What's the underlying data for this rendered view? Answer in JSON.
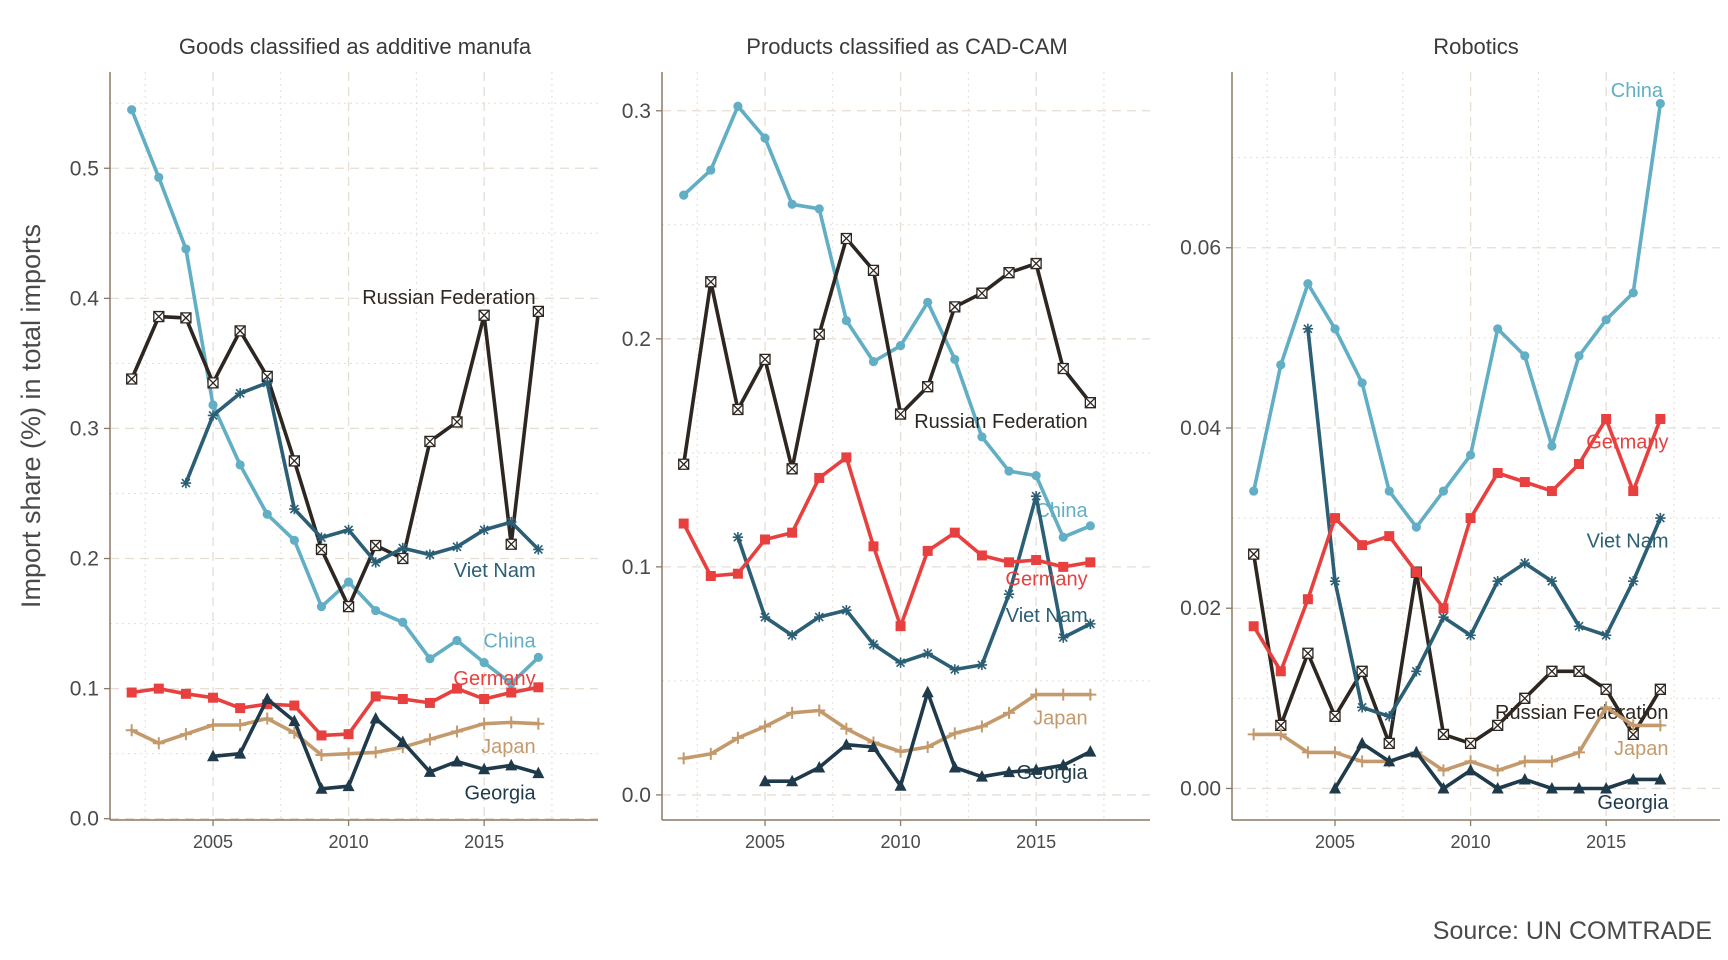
{
  "figure": {
    "ylabel": "Import share (%) in total imports",
    "source": "Source: UN COMTRADE"
  },
  "series_styles": {
    "China": {
      "color": "#62aec5",
      "marker": "circle"
    },
    "Russian Federation": {
      "color": "#2e2620",
      "marker": "boxx"
    },
    "Viet Nam": {
      "color": "#2b5f75",
      "marker": "star"
    },
    "Germany": {
      "color": "#e8403f",
      "marker": "square"
    },
    "Japan": {
      "color": "#c49a6c",
      "marker": "plus"
    },
    "Georgia": {
      "color": "#1f3a4a",
      "marker": "triangle"
    }
  },
  "chart_data": [
    {
      "type": "line",
      "title": "Goods classified as additive manufa",
      "xlim": [
        2001.2,
        2019.2
      ],
      "ylim": [
        -0.001,
        0.574
      ],
      "xticks": [
        2005,
        2010,
        2015
      ],
      "xticks_minor": [
        2002.5,
        2007.5,
        2012.5,
        2017.5
      ],
      "yticks": [
        0.0,
        0.1,
        0.2,
        0.3,
        0.4,
        0.5
      ],
      "ytick_labels": [
        "0.0",
        "0.1",
        "0.2",
        "0.3",
        "0.4",
        "0.5"
      ],
      "yticks_minor": [
        0.05,
        0.15,
        0.25,
        0.35,
        0.45,
        0.55
      ],
      "grid": true,
      "series": [
        {
          "name": "China",
          "x": [
            2002,
            2003,
            2004,
            2005,
            2006,
            2007,
            2008,
            2009,
            2010,
            2011,
            2012,
            2013,
            2014,
            2015,
            2016,
            2017
          ],
          "values": [
            0.545,
            0.493,
            0.438,
            0.318,
            0.272,
            0.234,
            0.214,
            0.163,
            0.182,
            0.16,
            0.151,
            0.123,
            0.137,
            0.12,
            0.104,
            0.124
          ],
          "label": "China",
          "label_pos": [
            2016.9,
            0.137
          ]
        },
        {
          "name": "Russian Federation",
          "x": [
            2002,
            2003,
            2004,
            2005,
            2006,
            2007,
            2008,
            2009,
            2010,
            2011,
            2012,
            2013,
            2014,
            2015,
            2016,
            2017
          ],
          "values": [
            0.338,
            0.386,
            0.385,
            0.335,
            0.375,
            0.34,
            0.275,
            0.207,
            0.163,
            0.21,
            0.2,
            0.29,
            0.305,
            0.387,
            0.211,
            0.39
          ],
          "label": "Russian Federation",
          "label_pos": [
            2016.9,
            0.401
          ]
        },
        {
          "name": "Viet Nam",
          "x": [
            2004,
            2005,
            2006,
            2007,
            2008,
            2009,
            2010,
            2011,
            2012,
            2013,
            2014,
            2015,
            2016,
            2017
          ],
          "values": [
            0.258,
            0.31,
            0.327,
            0.335,
            0.238,
            0.216,
            0.222,
            0.197,
            0.208,
            0.203,
            0.209,
            0.222,
            0.228,
            0.207
          ],
          "label": "Viet Nam",
          "label_pos": [
            2016.9,
            0.191
          ]
        },
        {
          "name": "Germany",
          "x": [
            2002,
            2003,
            2004,
            2005,
            2006,
            2007,
            2008,
            2009,
            2010,
            2011,
            2012,
            2013,
            2014,
            2015,
            2016,
            2017
          ],
          "values": [
            0.097,
            0.1,
            0.096,
            0.093,
            0.085,
            0.088,
            0.087,
            0.064,
            0.065,
            0.094,
            0.092,
            0.089,
            0.1,
            0.092,
            0.097,
            0.101
          ],
          "label": "Germany",
          "label_pos": [
            2016.9,
            0.108
          ]
        },
        {
          "name": "Japan",
          "x": [
            2002,
            2003,
            2004,
            2005,
            2006,
            2007,
            2008,
            2009,
            2010,
            2011,
            2012,
            2013,
            2014,
            2015,
            2016,
            2017
          ],
          "values": [
            0.068,
            0.058,
            0.065,
            0.072,
            0.072,
            0.077,
            0.066,
            0.049,
            0.05,
            0.051,
            0.055,
            0.061,
            0.067,
            0.073,
            0.074,
            0.073
          ],
          "label": "Japan",
          "label_pos": [
            2016.9,
            0.056
          ]
        },
        {
          "name": "Georgia",
          "x": [
            2005,
            2006,
            2007,
            2008,
            2009,
            2010,
            2011,
            2012,
            2013,
            2014,
            2015,
            2016,
            2017
          ],
          "values": [
            0.048,
            0.05,
            0.092,
            0.075,
            0.023,
            0.025,
            0.077,
            0.059,
            0.036,
            0.044,
            0.038,
            0.041,
            0.035
          ],
          "label": "Georgia",
          "label_pos": [
            2016.9,
            0.02
          ]
        }
      ]
    },
    {
      "type": "line",
      "title": "Products classified as CAD-CAM",
      "xlim": [
        2001.2,
        2019.2
      ],
      "ylim": [
        -0.011,
        0.317
      ],
      "xticks": [
        2005,
        2010,
        2015
      ],
      "xticks_minor": [
        2002.5,
        2007.5,
        2012.5,
        2017.5
      ],
      "yticks": [
        0.0,
        0.1,
        0.2,
        0.3
      ],
      "ytick_labels": [
        "0.0",
        "0.1",
        "0.2",
        "0.3"
      ],
      "yticks_minor": [
        0.05,
        0.15,
        0.25
      ],
      "grid": true,
      "series": [
        {
          "name": "China",
          "x": [
            2002,
            2003,
            2004,
            2005,
            2006,
            2007,
            2008,
            2009,
            2010,
            2011,
            2012,
            2013,
            2014,
            2015,
            2016,
            2017
          ],
          "values": [
            0.263,
            0.274,
            0.302,
            0.288,
            0.259,
            0.257,
            0.208,
            0.19,
            0.197,
            0.216,
            0.191,
            0.157,
            0.142,
            0.14,
            0.113,
            0.118
          ],
          "label": "China",
          "label_pos": [
            2016.9,
            0.125
          ]
        },
        {
          "name": "Russian Federation",
          "x": [
            2002,
            2003,
            2004,
            2005,
            2006,
            2007,
            2008,
            2009,
            2010,
            2011,
            2012,
            2013,
            2014,
            2015,
            2016,
            2017
          ],
          "values": [
            0.145,
            0.225,
            0.169,
            0.191,
            0.143,
            0.202,
            0.244,
            0.23,
            0.167,
            0.179,
            0.214,
            0.22,
            0.229,
            0.233,
            0.187,
            0.172
          ],
          "label": "Russian Federation",
          "label_pos": [
            2016.9,
            0.164
          ]
        },
        {
          "name": "Viet Nam",
          "x": [
            2004,
            2005,
            2006,
            2007,
            2008,
            2009,
            2010,
            2011,
            2012,
            2013,
            2014,
            2015,
            2016,
            2017
          ],
          "values": [
            0.113,
            0.078,
            0.07,
            0.078,
            0.081,
            0.066,
            0.058,
            0.062,
            0.055,
            0.057,
            0.088,
            0.131,
            0.069,
            0.075
          ],
          "label": "Viet Nam",
          "label_pos": [
            2016.9,
            0.079
          ]
        },
        {
          "name": "Germany",
          "x": [
            2002,
            2003,
            2004,
            2005,
            2006,
            2007,
            2008,
            2009,
            2010,
            2011,
            2012,
            2013,
            2014,
            2015,
            2016,
            2017
          ],
          "values": [
            0.119,
            0.096,
            0.097,
            0.112,
            0.115,
            0.139,
            0.148,
            0.109,
            0.074,
            0.107,
            0.115,
            0.105,
            0.102,
            0.103,
            0.1,
            0.102
          ],
          "label": "Germany",
          "label_pos": [
            2016.9,
            0.095
          ]
        },
        {
          "name": "Japan",
          "x": [
            2002,
            2003,
            2004,
            2005,
            2006,
            2007,
            2008,
            2009,
            2010,
            2011,
            2012,
            2013,
            2014,
            2015,
            2016,
            2017
          ],
          "values": [
            0.016,
            0.018,
            0.025,
            0.03,
            0.036,
            0.037,
            0.029,
            0.023,
            0.019,
            0.021,
            0.027,
            0.03,
            0.036,
            0.044,
            0.044,
            0.044
          ],
          "label": "Japan",
          "label_pos": [
            2016.9,
            0.034
          ]
        },
        {
          "name": "Georgia",
          "x": [
            2005,
            2006,
            2007,
            2008,
            2009,
            2010,
            2011,
            2012,
            2013,
            2014,
            2015,
            2016,
            2017
          ],
          "values": [
            0.006,
            0.006,
            0.012,
            0.022,
            0.021,
            0.004,
            0.045,
            0.012,
            0.008,
            0.01,
            0.011,
            0.013,
            0.019
          ],
          "label": "Georgia",
          "label_pos": [
            2016.9,
            0.01
          ]
        }
      ]
    },
    {
      "type": "line",
      "title": "Robotics",
      "xlim": [
        2001.2,
        2019.2
      ],
      "ylim": [
        -0.0035,
        0.0795
      ],
      "xticks": [
        2005,
        2010,
        2015
      ],
      "xticks_minor": [
        2002.5,
        2007.5,
        2012.5,
        2017.5
      ],
      "yticks": [
        0.0,
        0.02,
        0.04,
        0.06
      ],
      "ytick_labels": [
        "0.00",
        "0.02",
        "0.04",
        "0.06"
      ],
      "yticks_minor": [
        0.01,
        0.03,
        0.05,
        0.07
      ],
      "grid": true,
      "series": [
        {
          "name": "China",
          "x": [
            2002,
            2003,
            2004,
            2005,
            2006,
            2007,
            2008,
            2009,
            2010,
            2011,
            2012,
            2013,
            2014,
            2015,
            2016,
            2017
          ],
          "values": [
            0.033,
            0.047,
            0.056,
            0.051,
            0.045,
            0.033,
            0.029,
            0.033,
            0.037,
            0.051,
            0.048,
            0.038,
            0.048,
            0.052,
            0.055,
            0.076
          ],
          "label": "China",
          "label_pos": [
            2017.1,
            0.0775
          ]
        },
        {
          "name": "Russian Federation",
          "x": [
            2002,
            2003,
            2004,
            2005,
            2006,
            2007,
            2008,
            2009,
            2010,
            2011,
            2012,
            2013,
            2014,
            2015,
            2016,
            2017
          ],
          "values": [
            0.026,
            0.007,
            0.015,
            0.008,
            0.013,
            0.005,
            0.024,
            0.006,
            0.005,
            0.007,
            0.01,
            0.013,
            0.013,
            0.011,
            0.006,
            0.011
          ],
          "label": "Russian Federation",
          "label_pos": [
            2017.3,
            0.0085
          ]
        },
        {
          "name": "Viet Nam",
          "x": [
            2004,
            2005,
            2006,
            2007,
            2008,
            2009,
            2010,
            2011,
            2012,
            2013,
            2014,
            2015,
            2016,
            2017
          ],
          "values": [
            0.051,
            0.023,
            0.009,
            0.008,
            0.013,
            0.019,
            0.017,
            0.023,
            0.025,
            0.023,
            0.018,
            0.017,
            0.023,
            0.03
          ],
          "label": "Viet Nam",
          "label_pos": [
            2017.3,
            0.0275
          ]
        },
        {
          "name": "Germany",
          "x": [
            2002,
            2003,
            2004,
            2005,
            2006,
            2007,
            2008,
            2009,
            2010,
            2011,
            2012,
            2013,
            2014,
            2015,
            2016,
            2017
          ],
          "values": [
            0.018,
            0.013,
            0.021,
            0.03,
            0.027,
            0.028,
            0.024,
            0.02,
            0.03,
            0.035,
            0.034,
            0.033,
            0.036,
            0.041,
            0.033,
            0.041
          ],
          "label": "Germany",
          "label_pos": [
            2017.3,
            0.0385
          ]
        },
        {
          "name": "Japan",
          "x": [
            2002,
            2003,
            2004,
            2005,
            2006,
            2007,
            2008,
            2009,
            2010,
            2011,
            2012,
            2013,
            2014,
            2015,
            2016,
            2017
          ],
          "values": [
            0.006,
            0.006,
            0.004,
            0.004,
            0.003,
            0.003,
            0.004,
            0.002,
            0.003,
            0.002,
            0.003,
            0.003,
            0.004,
            0.009,
            0.007,
            0.007
          ],
          "label": "Japan",
          "label_pos": [
            2017.3,
            0.0045
          ]
        },
        {
          "name": "Georgia",
          "x": [
            2005,
            2006,
            2007,
            2008,
            2009,
            2010,
            2011,
            2012,
            2013,
            2014,
            2015,
            2016,
            2017
          ],
          "values": [
            0.0,
            0.005,
            0.003,
            0.004,
            0.0,
            0.002,
            0.0,
            0.001,
            0.0,
            0.0,
            0.0,
            0.001,
            0.001
          ],
          "label": "Georgia",
          "label_pos": [
            2017.3,
            -0.0015
          ]
        }
      ]
    }
  ]
}
